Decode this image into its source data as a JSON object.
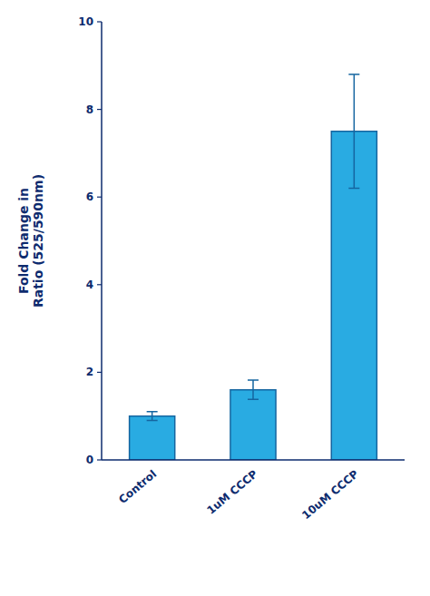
{
  "chart_data": {
    "type": "bar",
    "ylabel": "Fold Change in\nRatio (525/590nm)",
    "categories": [
      "Control",
      "1uM CCCP",
      "10uM CCCP"
    ],
    "values": [
      1.0,
      1.6,
      7.5
    ],
    "errors": [
      0.1,
      0.22,
      1.3
    ],
    "color": "#29ABE2",
    "ylim": [
      0,
      10
    ],
    "yticks": [
      0,
      2,
      4,
      6,
      8,
      10
    ],
    "grid": false
  }
}
